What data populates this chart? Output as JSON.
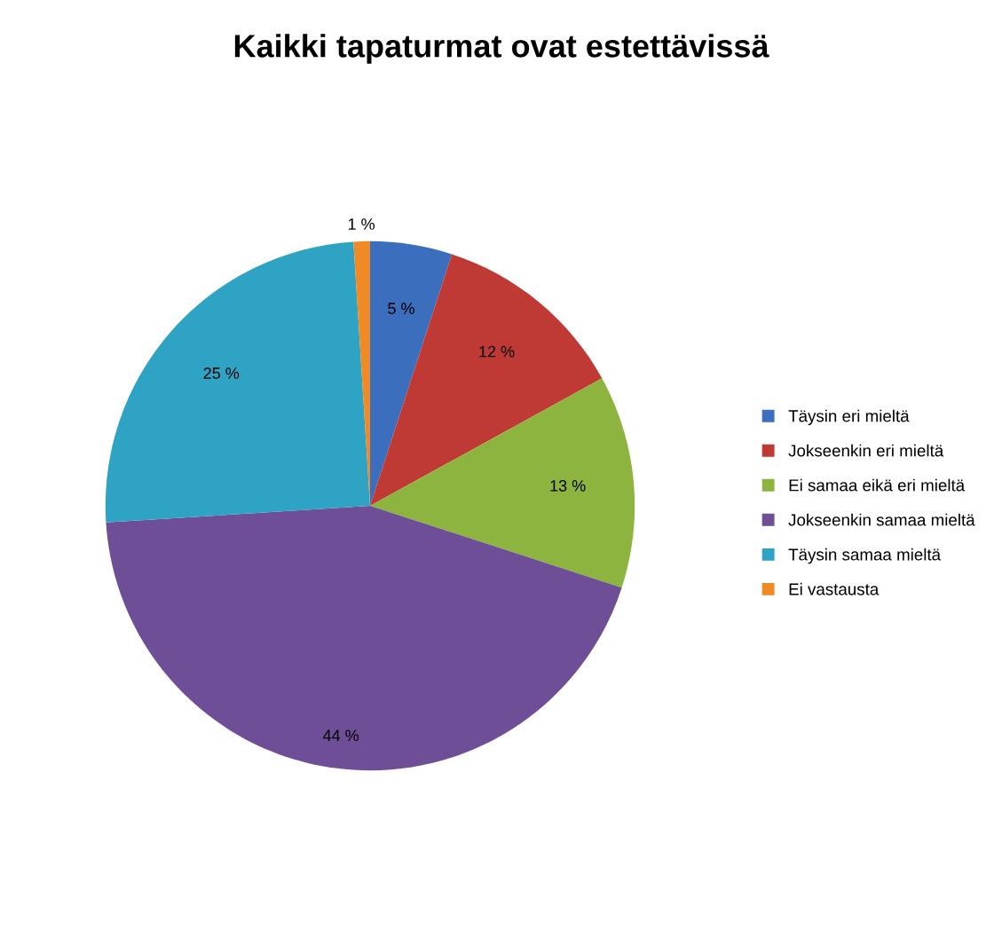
{
  "chart_data": {
    "type": "pie",
    "title": "Kaikki tapaturmat ovat estettävissä",
    "categories": [
      "Täysin eri mieltä",
      "Jokseenkin eri mieltä",
      "Ei samaa eikä eri mieltä",
      "Jokseenkin samaa mieltä",
      "Täysin samaa mieltä",
      "Ei vastausta"
    ],
    "values": [
      5,
      12,
      13,
      44,
      25,
      1
    ],
    "colors": [
      "#3b6fbe",
      "#c03a35",
      "#8cb43e",
      "#6e4e96",
      "#2fa3c4",
      "#ef8a24"
    ],
    "value_labels": [
      "5 %",
      "12 %",
      "13 %",
      "44 %",
      "25 %",
      "1 %"
    ],
    "legend": "right"
  }
}
